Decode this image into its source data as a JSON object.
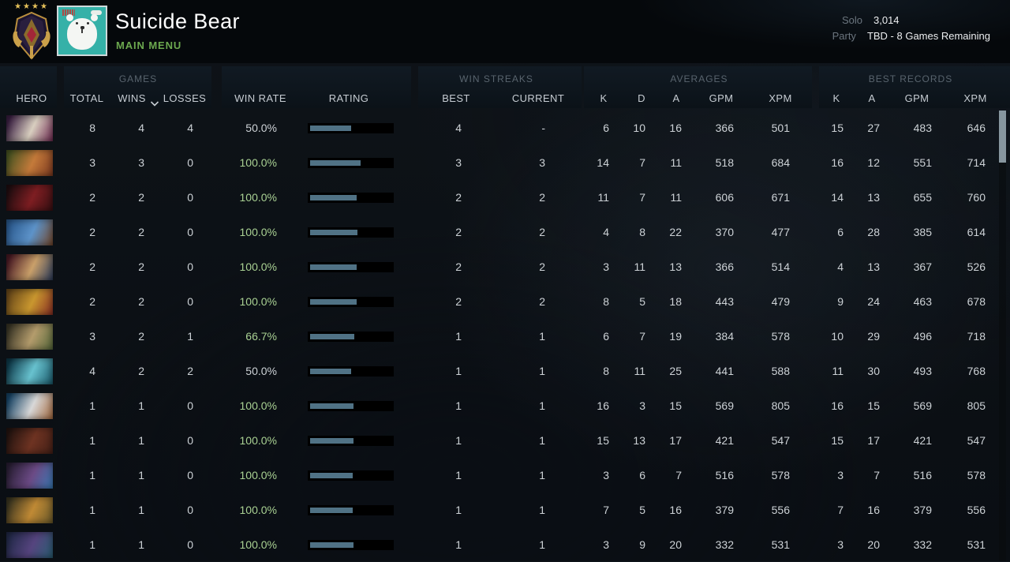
{
  "header": {
    "player_name": "Suicide Bear",
    "nav_label": "MAIN MENU",
    "rank_medal": "legend-4-medal",
    "mmr": {
      "solo_label": "Solo",
      "solo_value": "3,014",
      "party_label": "Party",
      "party_value": "TBD - 8 Games Remaining"
    }
  },
  "table": {
    "hero_col": "HERO",
    "games": {
      "label": "GAMES",
      "total": "TOTAL",
      "wins": "WINS",
      "losses": "LOSSES"
    },
    "rate": {
      "win_rate": "WIN RATE",
      "rating": "RATING"
    },
    "streaks": {
      "label": "WIN STREAKS",
      "best": "BEST",
      "current": "CURRENT"
    },
    "averages": {
      "label": "AVERAGES",
      "k": "K",
      "d": "D",
      "a": "A",
      "gpm": "GPM",
      "xpm": "XPM"
    },
    "records": {
      "label": "BEST RECORDS",
      "k": "K",
      "a": "A",
      "gpm": "GPM",
      "xpm": "XPM"
    }
  },
  "colors": {
    "win_rate_green": "#a9d193",
    "win_rate_neutral": "#cdd2d6",
    "rating_bar_fill": "#507285",
    "rating_bar_track": "#000000",
    "accent_green": "#6ca94f"
  },
  "rows": [
    {
      "hero_id": "invoker",
      "portrait": [
        "#3a1f42",
        "#d9cfc0",
        "#6e2950"
      ],
      "total": "8",
      "wins": "4",
      "losses": "4",
      "win_rate": "50.0%",
      "win_rate_green": false,
      "rating_pct": 50,
      "best_streak": "4",
      "current_streak": "-",
      "avg": {
        "k": "6",
        "d": "10",
        "a": "16",
        "gpm": "366",
        "xpm": "501"
      },
      "best": {
        "k": "15",
        "a": "27",
        "gpm": "483",
        "xpm": "646"
      }
    },
    {
      "hero_id": "windranger",
      "portrait": [
        "#4a5522",
        "#c47a3a",
        "#7e3a20"
      ],
      "total": "3",
      "wins": "3",
      "losses": "0",
      "win_rate": "100.0%",
      "win_rate_green": true,
      "rating_pct": 62,
      "best_streak": "3",
      "current_streak": "3",
      "avg": {
        "k": "14",
        "d": "7",
        "a": "11",
        "gpm": "518",
        "xpm": "684"
      },
      "best": {
        "k": "16",
        "a": "12",
        "gpm": "551",
        "xpm": "714"
      }
    },
    {
      "hero_id": "shadow-fiend",
      "portrait": [
        "#200d10",
        "#7e1e22",
        "#380f12"
      ],
      "total": "2",
      "wins": "2",
      "losses": "0",
      "win_rate": "100.0%",
      "win_rate_green": true,
      "rating_pct": 57,
      "best_streak": "2",
      "current_streak": "2",
      "avg": {
        "k": "11",
        "d": "7",
        "a": "11",
        "gpm": "606",
        "xpm": "671"
      },
      "best": {
        "k": "14",
        "a": "13",
        "gpm": "655",
        "xpm": "760"
      }
    },
    {
      "hero_id": "ogre-magi",
      "portrait": [
        "#2b5a8f",
        "#5d93c9",
        "#74472a"
      ],
      "total": "2",
      "wins": "2",
      "losses": "0",
      "win_rate": "100.0%",
      "win_rate_green": true,
      "rating_pct": 58,
      "best_streak": "2",
      "current_streak": "2",
      "avg": {
        "k": "4",
        "d": "8",
        "a": "22",
        "gpm": "370",
        "xpm": "477"
      },
      "best": {
        "k": "6",
        "a": "28",
        "gpm": "385",
        "xpm": "614"
      }
    },
    {
      "hero_id": "legion-commander",
      "portrait": [
        "#4a1a24",
        "#caa06a",
        "#2c3c5c"
      ],
      "total": "2",
      "wins": "2",
      "losses": "0",
      "win_rate": "100.0%",
      "win_rate_green": true,
      "rating_pct": 57,
      "best_streak": "2",
      "current_streak": "2",
      "avg": {
        "k": "3",
        "d": "11",
        "a": "13",
        "gpm": "366",
        "xpm": "514"
      },
      "best": {
        "k": "4",
        "a": "13",
        "gpm": "367",
        "xpm": "526"
      }
    },
    {
      "hero_id": "bounty-hunter",
      "portrait": [
        "#6b4a1a",
        "#c9972f",
        "#8a2f24"
      ],
      "total": "2",
      "wins": "2",
      "losses": "0",
      "win_rate": "100.0%",
      "win_rate_green": true,
      "rating_pct": 57,
      "best_streak": "2",
      "current_streak": "2",
      "avg": {
        "k": "8",
        "d": "5",
        "a": "18",
        "gpm": "443",
        "xpm": "479"
      },
      "best": {
        "k": "9",
        "a": "24",
        "gpm": "463",
        "xpm": "678"
      }
    },
    {
      "hero_id": "pudge",
      "portrait": [
        "#3a3626",
        "#b49c6c",
        "#57683a"
      ],
      "total": "3",
      "wins": "2",
      "losses": "1",
      "win_rate": "66.7%",
      "win_rate_green": true,
      "rating_pct": 54,
      "best_streak": "1",
      "current_streak": "1",
      "avg": {
        "k": "6",
        "d": "7",
        "a": "19",
        "gpm": "384",
        "xpm": "578"
      },
      "best": {
        "k": "10",
        "a": "29",
        "gpm": "496",
        "xpm": "718"
      }
    },
    {
      "hero_id": "winter-wyvern",
      "portrait": [
        "#0e3a4a",
        "#68c2cf",
        "#1a5a6b"
      ],
      "total": "4",
      "wins": "2",
      "losses": "2",
      "win_rate": "50.0%",
      "win_rate_green": false,
      "rating_pct": 50,
      "best_streak": "1",
      "current_streak": "1",
      "avg": {
        "k": "8",
        "d": "11",
        "a": "25",
        "gpm": "441",
        "xpm": "588"
      },
      "best": {
        "k": "11",
        "a": "30",
        "gpm": "493",
        "xpm": "768"
      }
    },
    {
      "hero_id": "zeus",
      "portrait": [
        "#174466",
        "#d8d8d8",
        "#a56a3f"
      ],
      "total": "1",
      "wins": "1",
      "losses": "0",
      "win_rate": "100.0%",
      "win_rate_green": true,
      "rating_pct": 53,
      "best_streak": "1",
      "current_streak": "1",
      "avg": {
        "k": "16",
        "d": "3",
        "a": "15",
        "gpm": "569",
        "xpm": "805"
      },
      "best": {
        "k": "16",
        "a": "15",
        "gpm": "569",
        "xpm": "805"
      }
    },
    {
      "hero_id": "ursa",
      "portrait": [
        "#241410",
        "#6e3322",
        "#452017"
      ],
      "total": "1",
      "wins": "1",
      "losses": "0",
      "win_rate": "100.0%",
      "win_rate_green": true,
      "rating_pct": 53,
      "best_streak": "1",
      "current_streak": "1",
      "avg": {
        "k": "15",
        "d": "13",
        "a": "17",
        "gpm": "421",
        "xpm": "547"
      },
      "best": {
        "k": "15",
        "a": "17",
        "gpm": "421",
        "xpm": "547"
      }
    },
    {
      "hero_id": "dark-seer",
      "portrait": [
        "#2a1f35",
        "#6b4a85",
        "#3a7ab5"
      ],
      "total": "1",
      "wins": "1",
      "losses": "0",
      "win_rate": "100.0%",
      "win_rate_green": true,
      "rating_pct": 52,
      "best_streak": "1",
      "current_streak": "1",
      "avg": {
        "k": "3",
        "d": "6",
        "a": "7",
        "gpm": "516",
        "xpm": "578"
      },
      "best": {
        "k": "3",
        "a": "7",
        "gpm": "516",
        "xpm": "578"
      }
    },
    {
      "hero_id": "alchemist",
      "portrait": [
        "#3a3520",
        "#c08a35",
        "#6b5a2a"
      ],
      "total": "1",
      "wins": "1",
      "losses": "0",
      "win_rate": "100.0%",
      "win_rate_green": true,
      "rating_pct": 52,
      "best_streak": "1",
      "current_streak": "1",
      "avg": {
        "k": "7",
        "d": "5",
        "a": "16",
        "gpm": "379",
        "xpm": "556"
      },
      "best": {
        "k": "7",
        "a": "16",
        "gpm": "379",
        "xpm": "556"
      }
    },
    {
      "hero_id": "riki",
      "portrait": [
        "#232a4a",
        "#55447e",
        "#2a5f74"
      ],
      "total": "1",
      "wins": "1",
      "losses": "0",
      "win_rate": "100.0%",
      "win_rate_green": true,
      "rating_pct": 53,
      "best_streak": "1",
      "current_streak": "1",
      "avg": {
        "k": "3",
        "d": "9",
        "a": "20",
        "gpm": "332",
        "xpm": "531"
      },
      "best": {
        "k": "3",
        "a": "20",
        "gpm": "332",
        "xpm": "531"
      }
    }
  ]
}
